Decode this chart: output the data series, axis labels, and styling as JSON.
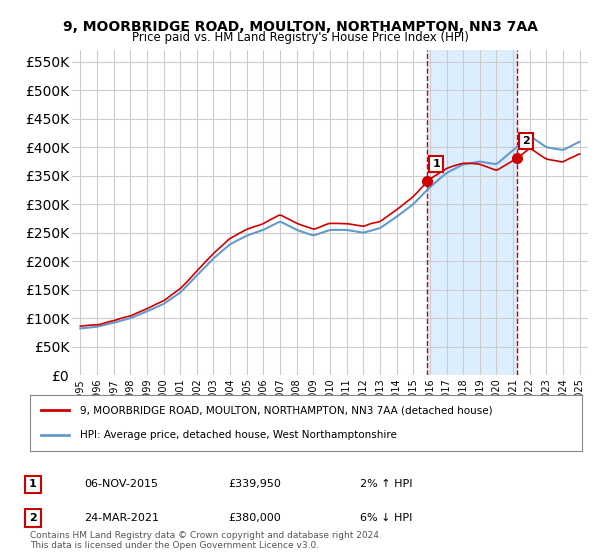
{
  "title": "9, MOORBRIDGE ROAD, MOULTON, NORTHAMPTON, NN3 7AA",
  "subtitle": "Price paid vs. HM Land Registry's House Price Index (HPI)",
  "legend_line1": "9, MOORBRIDGE ROAD, MOULTON, NORTHAMPTON, NN3 7AA (detached house)",
  "legend_line2": "HPI: Average price, detached house, West Northamptonshire",
  "sale1_label": "1",
  "sale1_date": "06-NOV-2015",
  "sale1_price": "£339,950",
  "sale1_hpi": "2% ↑ HPI",
  "sale2_label": "2",
  "sale2_date": "24-MAR-2021",
  "sale2_price": "£380,000",
  "sale2_hpi": "6% ↓ HPI",
  "footer": "Contains HM Land Registry data © Crown copyright and database right 2024.\nThis data is licensed under the Open Government Licence v3.0.",
  "line_color_red": "#cc0000",
  "line_color_blue": "#6699cc",
  "marker_color_red": "#cc0000",
  "shade_color": "#ddeeff",
  "sale1_x": 2015.85,
  "sale2_x": 2021.23,
  "ylim": [
    0,
    570000
  ],
  "xlim": [
    1994.5,
    2025.5
  ],
  "background_color": "#ffffff",
  "grid_color": "#cccccc"
}
